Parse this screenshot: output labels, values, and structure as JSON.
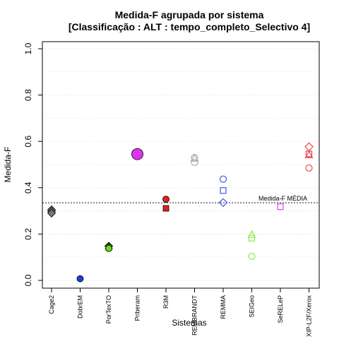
{
  "chart_data": {
    "type": "scatter",
    "title": "Medida-F agrupada por sistema",
    "subtitle": "[Classificação : ALT : tempo_completo_Selectivo 4]",
    "xlabel": "Sistemas",
    "ylabel": "Medida-F",
    "ylim": [
      0.0,
      1.0
    ],
    "yticks": [
      "0.0",
      "0.2",
      "0.4",
      "0.6",
      "0.8",
      "1.0"
    ],
    "grid": "horizontal dotted, every 0.1",
    "categories": [
      "Cage2",
      "DobrEM",
      "PorTexTO",
      "Priberam",
      "R3M",
      "REMBRANDT",
      "REMMA",
      "SEIGeo",
      "SeRELeP",
      "XIP-L2F/Xerox"
    ],
    "reference_line": {
      "label": "Medida-F MÉDIA",
      "value": 0.335
    },
    "points": [
      {
        "system": "Cage2",
        "shape": "diamond-filled",
        "color": "#777777",
        "y": 0.305
      },
      {
        "system": "Cage2",
        "shape": "diamond-filled",
        "color": "#777777",
        "y": 0.298
      },
      {
        "system": "Cage2",
        "shape": "diamond-filled",
        "color": "#777777",
        "y": 0.29
      },
      {
        "system": "DobrEM",
        "shape": "circle-filled",
        "color": "#1f3fd6",
        "y": 0.007
      },
      {
        "system": "PorTexTO",
        "shape": "diamond-filled",
        "color": "#66dd11",
        "y": 0.148
      },
      {
        "system": "PorTexTO",
        "shape": "triangle-filled",
        "color": "#66dd11",
        "y": 0.147
      },
      {
        "system": "PorTexTO",
        "shape": "square-filled",
        "color": "#66dd11",
        "y": 0.142
      },
      {
        "system": "PorTexTO",
        "shape": "circle-filled",
        "color": "#66dd11",
        "y": 0.138
      },
      {
        "system": "Priberam",
        "shape": "circle-filled-large",
        "color": "#dd33ee",
        "y": 0.545
      },
      {
        "system": "R3M",
        "shape": "circle-filled",
        "color": "#dd2222",
        "y": 0.35
      },
      {
        "system": "R3M",
        "shape": "square-filled",
        "color": "#dd2222",
        "y": 0.311
      },
      {
        "system": "REMBRANDT",
        "shape": "circle-open",
        "color": "#aaaaaa",
        "y": 0.53
      },
      {
        "system": "REMBRANDT",
        "shape": "triangle-open",
        "color": "#aaaaaa",
        "y": 0.527
      },
      {
        "system": "REMBRANDT",
        "shape": "circle-open",
        "color": "#aaaaaa",
        "y": 0.509
      },
      {
        "system": "REMMA",
        "shape": "circle-open",
        "color": "#4455ee",
        "y": 0.437
      },
      {
        "system": "REMMA",
        "shape": "square-open",
        "color": "#4455ee",
        "y": 0.388
      },
      {
        "system": "REMMA",
        "shape": "diamond-open",
        "color": "#4455ee",
        "y": 0.336
      },
      {
        "system": "SEIGeo",
        "shape": "triangle-open",
        "color": "#88ee44",
        "y": 0.198
      },
      {
        "system": "SEIGeo",
        "shape": "square-open",
        "color": "#88ee44",
        "y": 0.182
      },
      {
        "system": "SEIGeo",
        "shape": "circle-open",
        "color": "#88ee44",
        "y": 0.104
      },
      {
        "system": "SeRELeP",
        "shape": "square-open",
        "color": "#dd44ee",
        "y": 0.318
      },
      {
        "system": "XIP-L2F/Xerox",
        "shape": "diamond-open",
        "color": "#ee4444",
        "y": 0.577
      },
      {
        "system": "XIP-L2F/Xerox",
        "shape": "square-open",
        "color": "#ee4444",
        "y": 0.546
      },
      {
        "system": "XIP-L2F/Xerox",
        "shape": "triangle-open",
        "color": "#ee4444",
        "y": 0.542
      },
      {
        "system": "XIP-L2F/Xerox",
        "shape": "circle-open",
        "color": "#ee4444",
        "y": 0.485
      }
    ]
  }
}
